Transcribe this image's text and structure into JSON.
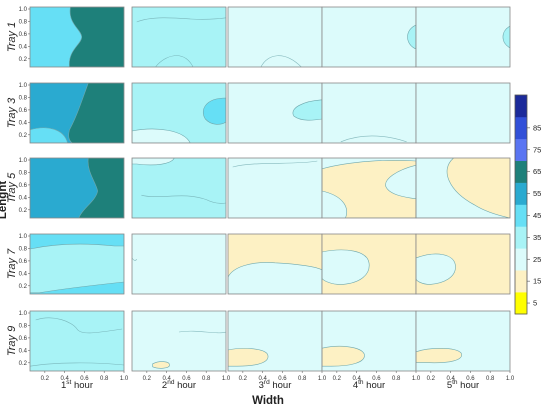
{
  "chart_data": {
    "type": "heatmap",
    "subtype": "contour-grid",
    "xlabel": "Width",
    "ylabel": "Lenght",
    "row_labels": [
      "Tray 1",
      "Tray 3",
      "Tray 5",
      "Tray 7",
      "Tray 9"
    ],
    "columns": [
      {
        "base": "1",
        "sup": "st",
        "rest": " hour"
      },
      {
        "base": "2",
        "sup": "nd",
        "rest": " hour"
      },
      {
        "base": "3",
        "sup": "rd",
        "rest": " hour"
      },
      {
        "base": "4",
        "sup": "th",
        "rest": " hour"
      },
      {
        "base": "5",
        "sup": "th",
        "rest": " hour"
      }
    ],
    "xlim": [
      0,
      1
    ],
    "ylim": [
      0,
      1
    ],
    "x_ticks": [
      "0.2",
      "0.4",
      "0.6",
      "0.8",
      "1.0"
    ],
    "y_ticks": [
      "0.2",
      "0.4",
      "0.6",
      "0.8",
      "1.0"
    ],
    "colorbar": {
      "levels": [
        0,
        10,
        20,
        30,
        40,
        50,
        60,
        70,
        80,
        90
      ],
      "tick_labels": [
        "5",
        "15",
        "25",
        "35",
        "45",
        "55",
        "65",
        "75",
        "85"
      ],
      "colors": [
        "#ffff00",
        "#fdf1c4",
        "#dcfbfb",
        "#a8f3f6",
        "#66dff5",
        "#2aaad0",
        "#1e807a",
        "#5a75f2",
        "#3250d8",
        "#1c2a9a"
      ]
    },
    "cells": [
      {
        "row": "Tray 1",
        "column": "1st hour",
        "background_band": "40-50",
        "regions": [
          {
            "band": "60-70",
            "center": [
              0.75,
              0.5
            ]
          }
        ]
      },
      {
        "row": "Tray 1",
        "column": "2nd hour",
        "background_band": "30-40"
      },
      {
        "row": "Tray 1",
        "column": "3rd hour",
        "background_band": "20-30"
      },
      {
        "row": "Tray 1",
        "column": "4th hour",
        "background_band": "20-30",
        "regions": [
          {
            "band": "30-40",
            "center": [
              0.97,
              0.5
            ]
          }
        ]
      },
      {
        "row": "Tray 1",
        "column": "5th hour",
        "background_band": "20-30",
        "regions": [
          {
            "band": "30-40",
            "center": [
              0.97,
              0.5
            ]
          }
        ]
      },
      {
        "row": "Tray 3",
        "column": "1st hour",
        "background_band": "50-60",
        "regions": [
          {
            "band": "60-70",
            "center": [
              0.75,
              0.5
            ]
          },
          {
            "band": "40-50",
            "center": [
              0.15,
              0.1
            ]
          }
        ]
      },
      {
        "row": "Tray 3",
        "column": "2nd hour",
        "background_band": "30-40",
        "regions": [
          {
            "band": "40-50",
            "center": [
              0.85,
              0.6
            ]
          },
          {
            "band": "20-30",
            "center": [
              0.3,
              0.15
            ]
          }
        ]
      },
      {
        "row": "Tray 3",
        "column": "3rd hour",
        "background_band": "20-30",
        "regions": [
          {
            "band": "30-40",
            "center": [
              0.85,
              0.5
            ]
          }
        ]
      },
      {
        "row": "Tray 3",
        "column": "4th hour",
        "background_band": "20-30"
      },
      {
        "row": "Tray 3",
        "column": "5th hour",
        "background_band": "20-30"
      },
      {
        "row": "Tray 5",
        "column": "1st hour",
        "background_band": "50-60",
        "regions": [
          {
            "band": "60-70",
            "center": [
              0.8,
              0.3
            ]
          }
        ]
      },
      {
        "row": "Tray 5",
        "column": "2nd hour",
        "background_band": "30-40",
        "regions": [
          {
            "band": "20-30",
            "center": [
              0.2,
              0.9
            ]
          }
        ]
      },
      {
        "row": "Tray 5",
        "column": "3rd hour",
        "background_band": "20-30"
      },
      {
        "row": "Tray 5",
        "column": "4th hour",
        "background_band": "20-30",
        "regions": [
          {
            "band": "10-20",
            "center": [
              0.5,
              0.6
            ]
          }
        ]
      },
      {
        "row": "Tray 5",
        "column": "5th hour",
        "background_band": "10-20",
        "regions": [
          {
            "band": "20-30",
            "center": [
              0.3,
              0.35
            ]
          }
        ]
      },
      {
        "row": "Tray 7",
        "column": "1st hour",
        "background_band": "40-50",
        "regions": [
          {
            "band": "30-40",
            "center": [
              0.5,
              0.05
            ]
          }
        ]
      },
      {
        "row": "Tray 7",
        "column": "2nd hour",
        "background_band": "20-30"
      },
      {
        "row": "Tray 7",
        "column": "3rd hour",
        "background_band": "10-20",
        "regions": [
          {
            "band": "20-30",
            "center": [
              0.5,
              0.3
            ]
          }
        ]
      },
      {
        "row": "Tray 7",
        "column": "4th hour",
        "background_band": "10-20",
        "regions": [
          {
            "band": "20-30",
            "center": [
              0.25,
              0.35
            ]
          }
        ]
      },
      {
        "row": "Tray 7",
        "column": "5th hour",
        "background_band": "10-20",
        "regions": [
          {
            "band": "20-30",
            "center": [
              0.2,
              0.35
            ]
          }
        ]
      },
      {
        "row": "Tray 9",
        "column": "1st hour",
        "background_band": "30-40"
      },
      {
        "row": "Tray 9",
        "column": "2nd hour",
        "background_band": "20-30",
        "regions": [
          {
            "band": "10-20",
            "center": [
              0.3,
              0.1
            ]
          }
        ]
      },
      {
        "row": "Tray 9",
        "column": "3rd hour",
        "background_band": "20-30",
        "regions": [
          {
            "band": "10-20",
            "center": [
              0.3,
              0.15
            ]
          }
        ]
      },
      {
        "row": "Tray 9",
        "column": "4th hour",
        "background_band": "20-30",
        "regions": [
          {
            "band": "10-20",
            "center": [
              0.25,
              0.15
            ]
          }
        ]
      },
      {
        "row": "Tray 9",
        "column": "5th hour",
        "background_band": "20-30",
        "regions": [
          {
            "band": "10-20",
            "center": [
              0.3,
              0.2
            ]
          }
        ]
      }
    ]
  }
}
